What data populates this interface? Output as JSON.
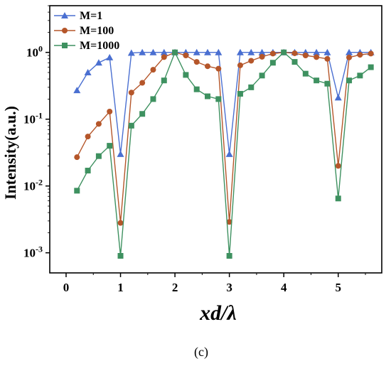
{
  "chart_data": {
    "type": "line",
    "yscale": "log",
    "xlabel": "xd/λ",
    "ylabel": "Intensity(a.u.)",
    "xlim": [
      -0.3,
      5.8
    ],
    "ylim": [
      0.0005,
      5
    ],
    "xticks": [
      0,
      1,
      2,
      3,
      4,
      5
    ],
    "xtick_labels": [
      "0",
      "1",
      "2",
      "3",
      "4",
      "5"
    ],
    "yticks": [
      0.001,
      0.01,
      0.1,
      1
    ],
    "ytick_labels": [
      {
        "base": "10",
        "exp": "-3"
      },
      {
        "base": "10",
        "exp": "-2"
      },
      {
        "base": "10",
        "exp": "-1"
      },
      {
        "base": "10",
        "exp": "0"
      }
    ],
    "legend_position": "top-left",
    "caption": "(c)",
    "series": [
      {
        "name": "M=1",
        "color": "#4a6fd1",
        "marker": "triangle",
        "x": [
          0.2,
          0.4,
          0.6,
          0.8,
          1.0,
          1.2,
          1.4,
          1.6,
          1.8,
          2.0,
          2.2,
          2.4,
          2.6,
          2.8,
          3.0,
          3.2,
          3.4,
          3.6,
          3.8,
          4.0,
          4.2,
          4.4,
          4.6,
          4.8,
          5.0,
          5.2,
          5.4,
          5.6
        ],
        "y": [
          0.27,
          0.5,
          0.7,
          0.84,
          0.03,
          0.98,
          1.0,
          1.0,
          1.0,
          1.0,
          1.0,
          1.0,
          1.0,
          1.0,
          0.03,
          1.0,
          1.0,
          1.0,
          1.0,
          1.0,
          1.0,
          1.0,
          1.0,
          1.0,
          0.21,
          1.0,
          1.0,
          1.0
        ]
      },
      {
        "name": "M=100",
        "color": "#b5562a",
        "marker": "circle",
        "x": [
          0.2,
          0.4,
          0.6,
          0.8,
          1.0,
          1.2,
          1.4,
          1.6,
          1.8,
          2.0,
          2.2,
          2.4,
          2.6,
          2.8,
          3.0,
          3.2,
          3.4,
          3.6,
          3.8,
          4.0,
          4.2,
          4.4,
          4.6,
          4.8,
          5.0,
          5.2,
          5.4,
          5.6
        ],
        "y": [
          0.027,
          0.055,
          0.085,
          0.13,
          0.0028,
          0.25,
          0.35,
          0.55,
          0.85,
          1.0,
          0.9,
          0.72,
          0.62,
          0.57,
          0.0029,
          0.64,
          0.75,
          0.86,
          0.96,
          1.0,
          0.97,
          0.9,
          0.85,
          0.8,
          0.02,
          0.84,
          0.92,
          0.96
        ]
      },
      {
        "name": "M=1000",
        "color": "#3e9160",
        "marker": "square",
        "x": [
          0.2,
          0.4,
          0.6,
          0.8,
          1.0,
          1.2,
          1.4,
          1.6,
          1.8,
          2.0,
          2.2,
          2.4,
          2.6,
          2.8,
          3.0,
          3.2,
          3.4,
          3.6,
          3.8,
          4.0,
          4.2,
          4.4,
          4.6,
          4.8,
          5.0,
          5.2,
          5.4,
          5.6
        ],
        "y": [
          0.0085,
          0.017,
          0.028,
          0.04,
          0.0009,
          0.08,
          0.12,
          0.2,
          0.38,
          1.0,
          0.46,
          0.28,
          0.22,
          0.2,
          0.0009,
          0.24,
          0.3,
          0.45,
          0.7,
          1.0,
          0.72,
          0.48,
          0.38,
          0.34,
          0.0065,
          0.38,
          0.45,
          0.6
        ]
      }
    ]
  }
}
